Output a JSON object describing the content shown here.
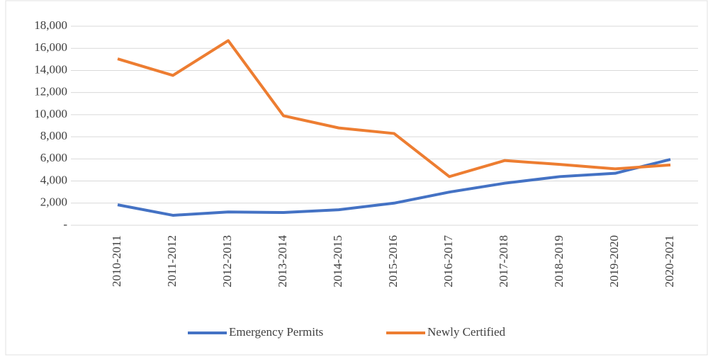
{
  "chart_data": {
    "type": "line",
    "categories": [
      "2010-2011",
      "2011-2012",
      "2012-2013",
      "2013-2014",
      "2014-2015",
      "2015-2016",
      "2016-2017",
      "2017-2018",
      "2018-2019",
      "2019-2020",
      "2020-2021"
    ],
    "series": [
      {
        "name": "Emergency Permits",
        "color": "#4472c4",
        "values": [
          1850,
          900,
          1200,
          1150,
          1400,
          2000,
          3000,
          3800,
          4400,
          4700,
          5950
        ]
      },
      {
        "name": "Newly Certified",
        "color": "#ed7d31",
        "values": [
          15050,
          13550,
          16700,
          9900,
          8800,
          8300,
          4400,
          5850,
          5500,
          5100,
          5450
        ]
      }
    ],
    "ylim": [
      0,
      18000
    ],
    "yticks": [
      {
        "value": 0,
        "label": "-"
      },
      {
        "value": 2000,
        "label": "2,000"
      },
      {
        "value": 4000,
        "label": "4,000"
      },
      {
        "value": 6000,
        "label": "6,000"
      },
      {
        "value": 8000,
        "label": "8,000"
      },
      {
        "value": 10000,
        "label": "10,000"
      },
      {
        "value": 12000,
        "label": "12,000"
      },
      {
        "value": 14000,
        "label": "14,000"
      },
      {
        "value": 16000,
        "label": "16,000"
      },
      {
        "value": 18000,
        "label": "18,000"
      }
    ],
    "grid": true,
    "legend": "bottom"
  }
}
